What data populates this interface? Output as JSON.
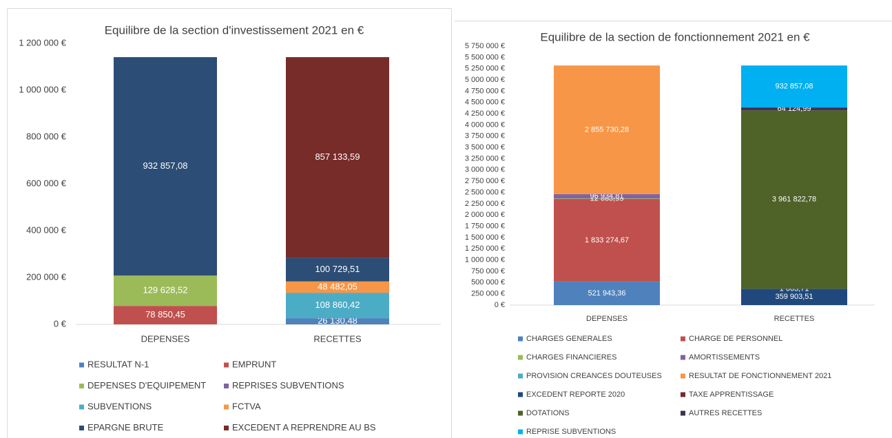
{
  "chart_data": [
    {
      "type": "bar",
      "stacked": true,
      "title": "Equilibre de la section d'investissement 2021 en €",
      "categories": [
        "DEPENSES",
        "RECETTES"
      ],
      "ylim": [
        0,
        1200000
      ],
      "yticks": [
        {
          "value": 0,
          "label": "0 €"
        },
        {
          "value": 200000,
          "label": "200 000 €"
        },
        {
          "value": 400000,
          "label": "400 000 €"
        },
        {
          "value": 600000,
          "label": "600 000 €"
        },
        {
          "value": 800000,
          "label": "800 000 €"
        },
        {
          "value": 1000000,
          "label": "1 000 000 €"
        },
        {
          "value": 1200000,
          "label": "1 200 000 €"
        }
      ],
      "grid": false,
      "series": [
        {
          "name": "RESULTAT N-1",
          "color": "#4f81bd",
          "values": [
            null,
            26130.48
          ],
          "value_labels": [
            null,
            "26 130,48"
          ]
        },
        {
          "name": "EMPRUNT",
          "color": "#c0504d",
          "values": [
            78850.45,
            null
          ],
          "value_labels": [
            "78 850,45",
            null
          ]
        },
        {
          "name": "DEPENSES D'EQUIPEMENT",
          "color": "#9bbb59",
          "values": [
            129628.52,
            null
          ],
          "value_labels": [
            "129 628,52",
            null
          ]
        },
        {
          "name": "REPRISES SUBVENTIONS",
          "color": "#8064a2",
          "values": [
            null,
            null
          ],
          "value_labels": [
            null,
            null
          ]
        },
        {
          "name": "SUBVENTIONS",
          "color": "#4bacc6",
          "values": [
            null,
            108860.42
          ],
          "value_labels": [
            null,
            "108 860,42"
          ]
        },
        {
          "name": "FCTVA",
          "color": "#f79646",
          "values": [
            null,
            48482.05
          ],
          "value_labels": [
            null,
            "48 482,05"
          ]
        },
        {
          "name": "EPARGNE BRUTE",
          "color": "#2c4d75",
          "values": [
            932857.08,
            100729.51
          ],
          "value_labels": [
            "932 857,08",
            "100 729,51"
          ]
        },
        {
          "name": "EXCEDENT A REPRENDRE AU BS",
          "color": "#772c2a",
          "values": [
            null,
            857133.59
          ],
          "value_labels": [
            null,
            "857 133,59"
          ]
        }
      ]
    },
    {
      "type": "bar",
      "stacked": true,
      "title": "Equilibre de la section de fonctionnement 2021 en €",
      "categories": [
        "DEPENSES",
        "RECETTES"
      ],
      "ylim": [
        0,
        5750000
      ],
      "yticks": [
        {
          "value": 0,
          "label": "0 €"
        },
        {
          "value": 250000,
          "label": "250 000 €"
        },
        {
          "value": 500000,
          "label": "500 000 €"
        },
        {
          "value": 750000,
          "label": "750 000 €"
        },
        {
          "value": 1000000,
          "label": "1 000 000 €"
        },
        {
          "value": 1250000,
          "label": "1 250 000 €"
        },
        {
          "value": 1500000,
          "label": "1 500 000 €"
        },
        {
          "value": 1750000,
          "label": "1 750 000 €"
        },
        {
          "value": 2000000,
          "label": "2 000 000 €"
        },
        {
          "value": 2250000,
          "label": "2 250 000 €"
        },
        {
          "value": 2500000,
          "label": "2 500 000 €"
        },
        {
          "value": 2750000,
          "label": "2 750 000 €"
        },
        {
          "value": 3000000,
          "label": "3 000 000 €"
        },
        {
          "value": 3250000,
          "label": "3 250 000 €"
        },
        {
          "value": 3500000,
          "label": "3 500 000 €"
        },
        {
          "value": 3750000,
          "label": "3 750 000 €"
        },
        {
          "value": 4000000,
          "label": "4 000 000 €"
        },
        {
          "value": 4250000,
          "label": "4 250 000 €"
        },
        {
          "value": 4500000,
          "label": "4 500 000 €"
        },
        {
          "value": 4750000,
          "label": "4 750 000 €"
        },
        {
          "value": 5000000,
          "label": "5 000 000 €"
        },
        {
          "value": 5250000,
          "label": "5 250 000 €"
        },
        {
          "value": 5500000,
          "label": "5 500 000 €"
        },
        {
          "value": 5750000,
          "label": "5 750 000 €"
        }
      ],
      "grid": false,
      "series": [
        {
          "name": "CHARGES GENERALES",
          "color": "#4f81bd",
          "values": [
            521943.36,
            null
          ],
          "value_labels": [
            "521 943,36",
            null
          ]
        },
        {
          "name": "CHARGE DE PERSONNEL",
          "color": "#c0504d",
          "values": [
            1833274.67,
            null
          ],
          "value_labels": [
            "1 833 274,67",
            null
          ]
        },
        {
          "name": "CHARGES FINANCIERES",
          "color": "#9bbb59",
          "values": [
            12088.95,
            null
          ],
          "value_labels": [
            "12 088,95",
            null
          ]
        },
        {
          "name": "AMORTISSEMENTS",
          "color": "#8064a2",
          "values": [
            96934.81,
            null
          ],
          "value_labels": [
            "96 934,81",
            null
          ]
        },
        {
          "name": "PROVISION CREANCES DOUTEUSES",
          "color": "#4bacc6",
          "values": [
            null,
            null
          ],
          "value_labels": [
            null,
            null
          ]
        },
        {
          "name": "RESULTAT DE FONCTIONNEMENT 2021",
          "color": "#f79646",
          "values": [
            2855730.28,
            null
          ],
          "value_labels": [
            "2 855 730,28",
            null
          ]
        },
        {
          "name": "EXCEDENT REPORTE 2020",
          "color": "#1f497d",
          "values": [
            null,
            359903.51
          ],
          "value_labels": [
            null,
            "359 903,51"
          ]
        },
        {
          "name": "TAXE APPRENTISSAGE",
          "color": "#772c2a",
          "values": [
            null,
            1663.71
          ],
          "value_labels": [
            null,
            "1 663,71"
          ]
        },
        {
          "name": "DOTATIONS",
          "color": "#4f6228",
          "values": [
            null,
            3961822.78
          ],
          "value_labels": [
            null,
            "3 961 822,78"
          ]
        },
        {
          "name": "AUTRES RECETTES",
          "color": "#3f3151",
          "values": [
            null,
            64124.99
          ],
          "value_labels": [
            null,
            "64 124,99"
          ]
        },
        {
          "name": "REPRISE SUBVENTIONS",
          "color": "#00b0f0",
          "values": [
            null,
            932857.08
          ],
          "value_labels": [
            null,
            "932 857,08"
          ]
        }
      ]
    }
  ]
}
